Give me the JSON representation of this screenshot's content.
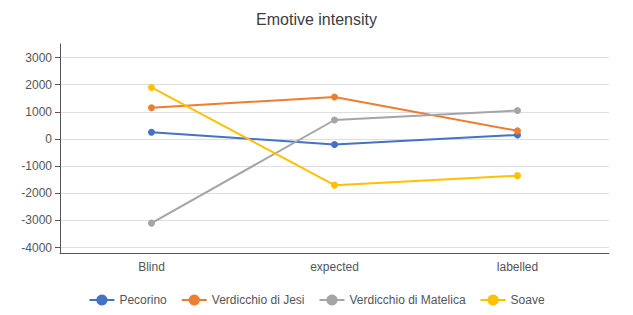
{
  "chart_data": {
    "type": "line",
    "title": "Emotive intensity",
    "categories": [
      "Blind",
      "expected",
      "labelled"
    ],
    "series": [
      {
        "name": "Pecorino",
        "color": "#4472c4",
        "marker": "circle",
        "values": [
          250,
          -200,
          150
        ]
      },
      {
        "name": "Verdicchio di Jesi",
        "color": "#ed7d31",
        "marker": "circle",
        "values": [
          1150,
          1550,
          300
        ]
      },
      {
        "name": "Verdicchio di Matelica",
        "color": "#a5a5a5",
        "marker": "circle",
        "values": [
          -3100,
          700,
          1050
        ]
      },
      {
        "name": "Soave",
        "color": "#ffc000",
        "marker": "circle",
        "values": [
          1900,
          -1700,
          -1350
        ]
      }
    ],
    "ylim": [
      -4200,
      3500
    ],
    "yticks": [
      -4000,
      -3000,
      -2000,
      -1000,
      0,
      1000,
      2000,
      3000
    ],
    "grid": true,
    "legend": "bottom"
  }
}
